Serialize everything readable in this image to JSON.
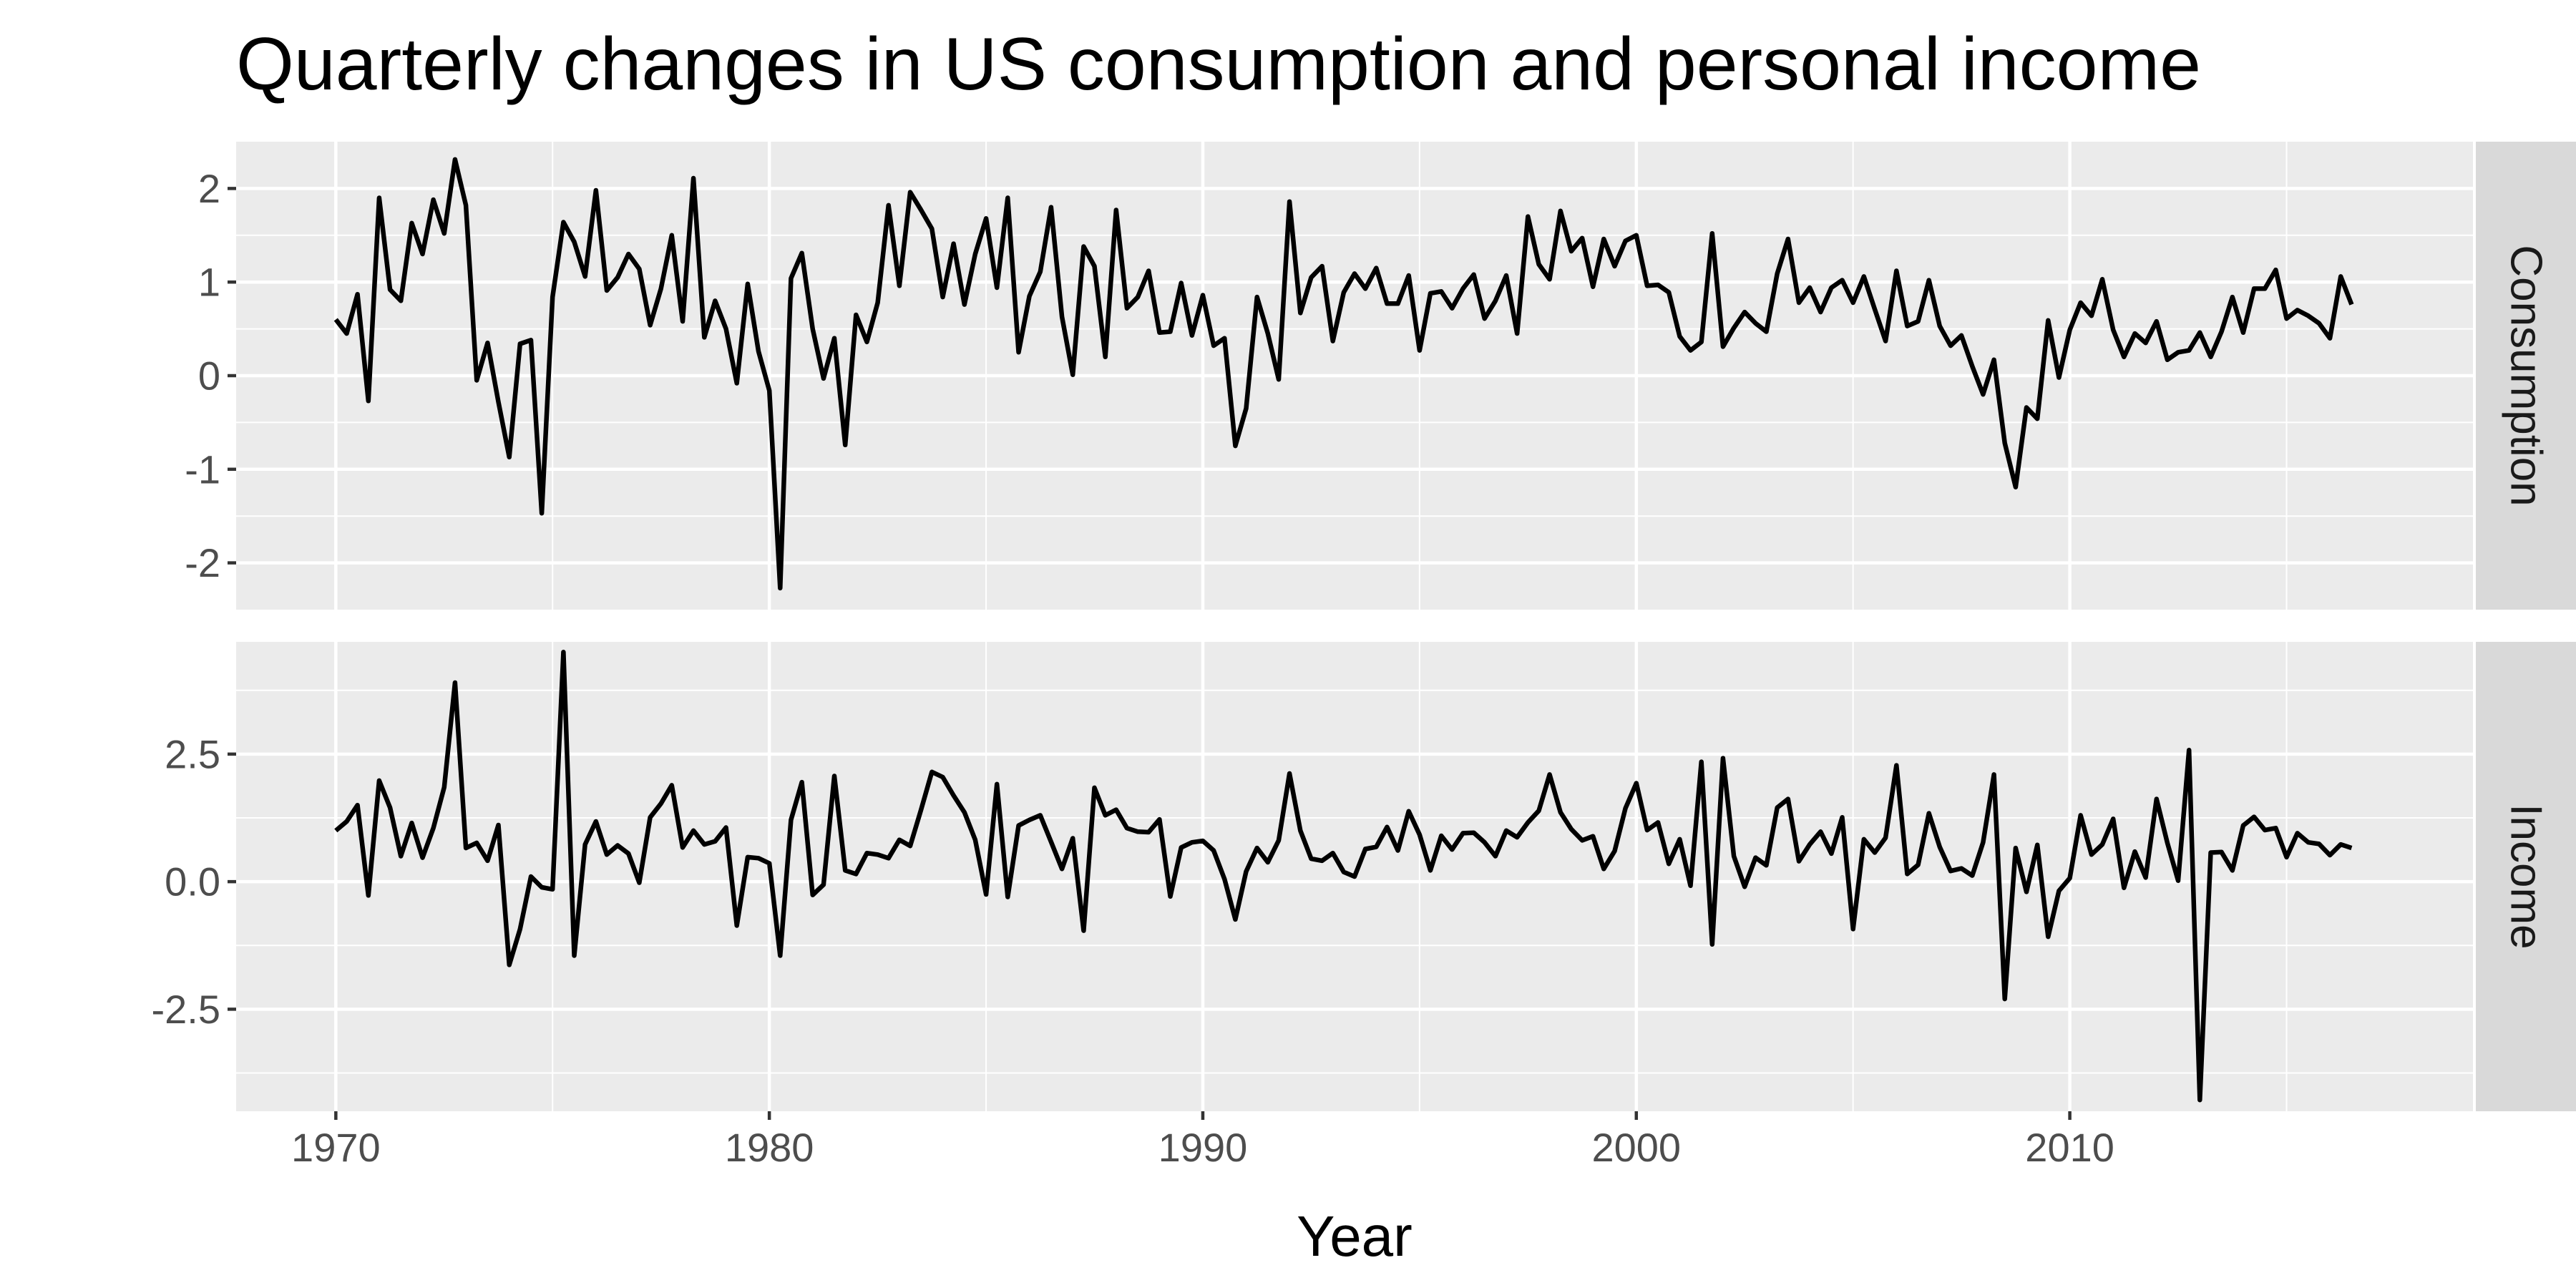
{
  "chart_data": {
    "type": "line",
    "title": "Quarterly changes in US consumption and personal income",
    "xlabel": "Year",
    "x_ticks": [
      1970,
      1980,
      1990,
      2000,
      2010
    ],
    "x_start": 1970.0,
    "x_step": 0.25,
    "xlim": [
      1967.7,
      2019.3
    ],
    "grid": true,
    "line_color": "#000000",
    "panel_background": "#ebebeb",
    "strip_background": "#d9d9d9",
    "panels": [
      {
        "name": "Consumption",
        "ylim": [
          -2.5,
          2.5
        ],
        "y_ticks": [
          -2,
          -1,
          0,
          1,
          2
        ],
        "y_tick_labels": [
          "-2",
          "-1",
          "0",
          "1",
          "2"
        ],
        "values": [
          0.6,
          0.45,
          0.87,
          -0.27,
          1.9,
          0.92,
          0.8,
          1.63,
          1.3,
          1.88,
          1.52,
          2.31,
          1.82,
          -0.05,
          0.35,
          -0.28,
          -0.87,
          0.34,
          0.38,
          -1.47,
          0.84,
          1.64,
          1.43,
          1.06,
          1.98,
          0.91,
          1.05,
          1.3,
          1.14,
          0.54,
          0.93,
          1.5,
          0.58,
          2.11,
          0.41,
          0.8,
          0.5,
          -0.08,
          0.98,
          0.26,
          -0.16,
          -2.27,
          1.04,
          1.31,
          0.5,
          -0.03,
          0.4,
          -0.74,
          0.65,
          0.36,
          0.78,
          1.82,
          0.96,
          1.96,
          1.77,
          1.57,
          0.84,
          1.41,
          0.76,
          1.3,
          1.68,
          0.94,
          1.9,
          0.25,
          0.85,
          1.11,
          1.8,
          0.63,
          0.01,
          1.38,
          1.17,
          0.2,
          1.77,
          0.72,
          0.84,
          1.12,
          0.46,
          0.47,
          0.99,
          0.43,
          0.86,
          0.32,
          0.4,
          -0.75,
          -0.35,
          0.84,
          0.45,
          -0.04,
          1.86,
          0.67,
          1.05,
          1.17,
          0.37,
          0.89,
          1.09,
          0.93,
          1.15,
          0.77,
          0.77,
          1.07,
          0.27,
          0.88,
          0.9,
          0.72,
          0.93,
          1.08,
          0.61,
          0.8,
          1.07,
          0.45,
          1.7,
          1.19,
          1.03,
          1.76,
          1.33,
          1.47,
          0.95,
          1.46,
          1.17,
          1.44,
          1.5,
          0.96,
          0.97,
          0.89,
          0.42,
          0.27,
          0.36,
          1.52,
          0.31,
          0.51,
          0.68,
          0.56,
          0.47,
          1.09,
          1.46,
          0.78,
          0.94,
          0.68,
          0.94,
          1.02,
          0.78,
          1.06,
          0.71,
          0.37,
          1.12,
          0.53,
          0.58,
          1.02,
          0.53,
          0.32,
          0.43,
          0.1,
          -0.2,
          0.17,
          -0.72,
          -1.19,
          -0.34,
          -0.46,
          0.59,
          -0.02,
          0.49,
          0.78,
          0.64,
          1.03,
          0.49,
          0.2,
          0.45,
          0.35,
          0.58,
          0.17,
          0.25,
          0.27,
          0.46,
          0.2,
          0.47,
          0.84,
          0.46,
          0.93,
          0.93,
          1.13,
          0.61,
          0.7,
          0.64,
          0.56,
          0.4,
          1.06,
          0.76
        ]
      },
      {
        "name": "Income",
        "ylim": [
          -4.5,
          4.7
        ],
        "y_ticks": [
          -2.5,
          0,
          2.5
        ],
        "y_tick_labels": [
          "-2.5",
          "0.0",
          "2.5"
        ],
        "values": [
          1.0,
          1.18,
          1.5,
          -0.27,
          1.98,
          1.45,
          0.5,
          1.15,
          0.47,
          1.05,
          1.85,
          3.9,
          0.66,
          0.76,
          0.41,
          1.11,
          -1.63,
          -0.93,
          0.1,
          -0.11,
          -0.15,
          4.5,
          -1.45,
          0.73,
          1.18,
          0.53,
          0.71,
          0.55,
          -0.02,
          1.26,
          1.53,
          1.89,
          0.67,
          1.0,
          0.73,
          0.79,
          1.06,
          -0.86,
          0.48,
          0.46,
          0.36,
          -1.45,
          1.21,
          1.95,
          -0.26,
          -0.06,
          2.07,
          0.22,
          0.15,
          0.56,
          0.53,
          0.46,
          0.82,
          0.7,
          1.41,
          2.15,
          2.05,
          1.69,
          1.36,
          0.82,
          -0.25,
          1.91,
          -0.3,
          1.1,
          1.21,
          1.3,
          0.78,
          0.25,
          0.85,
          -0.96,
          1.84,
          1.3,
          1.41,
          1.05,
          0.98,
          0.97,
          1.22,
          -0.29,
          0.67,
          0.77,
          0.8,
          0.61,
          0.05,
          -0.74,
          0.2,
          0.66,
          0.38,
          0.81,
          2.12,
          1.0,
          0.45,
          0.41,
          0.56,
          0.19,
          0.1,
          0.64,
          0.68,
          1.07,
          0.61,
          1.38,
          0.92,
          0.22,
          0.9,
          0.63,
          0.95,
          0.96,
          0.77,
          0.5,
          1.0,
          0.87,
          1.16,
          1.39,
          2.1,
          1.36,
          1.03,
          0.81,
          0.89,
          0.25,
          0.6,
          1.44,
          1.93,
          1.01,
          1.16,
          0.35,
          0.83,
          -0.08,
          2.35,
          -1.23,
          2.42,
          0.5,
          -0.1,
          0.47,
          0.32,
          1.45,
          1.62,
          0.4,
          0.73,
          0.98,
          0.55,
          1.26,
          -0.93,
          0.83,
          0.57,
          0.86,
          2.28,
          0.15,
          0.33,
          1.34,
          0.68,
          0.21,
          0.26,
          0.12,
          0.77,
          2.1,
          -2.3,
          0.66,
          -0.2,
          0.72,
          -1.08,
          -0.18,
          0.07,
          1.3,
          0.53,
          0.73,
          1.23,
          -0.12,
          0.59,
          0.08,
          1.62,
          0.76,
          0.02,
          2.58,
          -4.28,
          0.57,
          0.58,
          0.22,
          1.1,
          1.27,
          1.01,
          1.05,
          0.48,
          0.95,
          0.77,
          0.74,
          0.52,
          0.73,
          0.66
        ]
      }
    ]
  }
}
